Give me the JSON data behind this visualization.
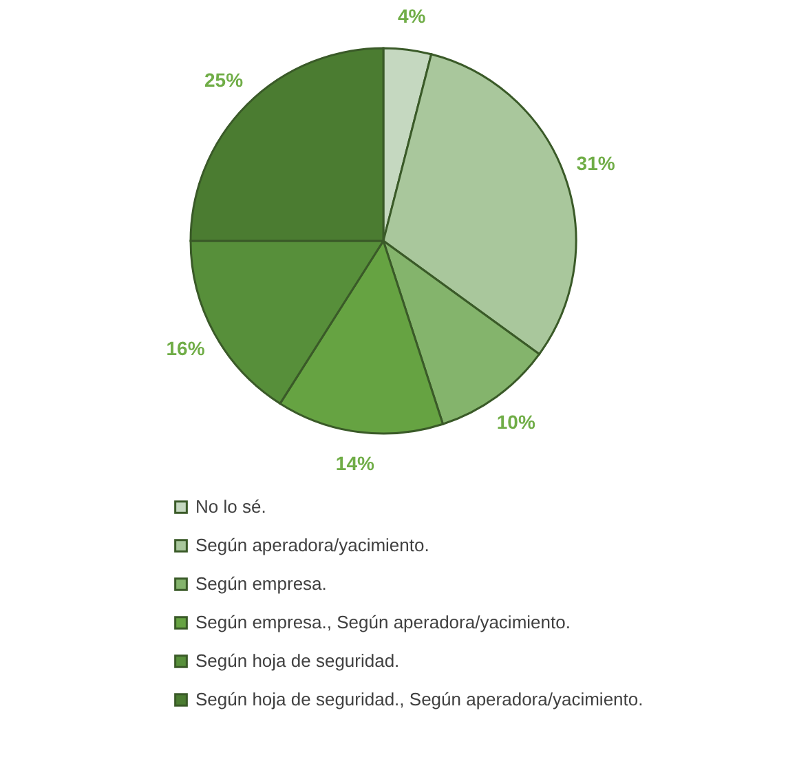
{
  "chart_data": {
    "type": "pie",
    "categories": [
      "No lo sé.",
      "Según aperadora/yacimiento.",
      "Según empresa.",
      "Según empresa., Según aperadora/yacimiento.",
      "Según hoja de seguridad.",
      "Según hoja de seguridad., Según aperadora/yacimiento."
    ],
    "values": [
      4,
      31,
      10,
      14,
      16,
      25
    ],
    "colors": [
      "#c5d8c0",
      "#a9c79c",
      "#84b46c",
      "#66a342",
      "#578f3a",
      "#4b7c31"
    ],
    "value_labels": [
      "4%",
      "31%",
      "10%",
      "14%",
      "16%",
      "25%"
    ],
    "legend": "bottom"
  }
}
